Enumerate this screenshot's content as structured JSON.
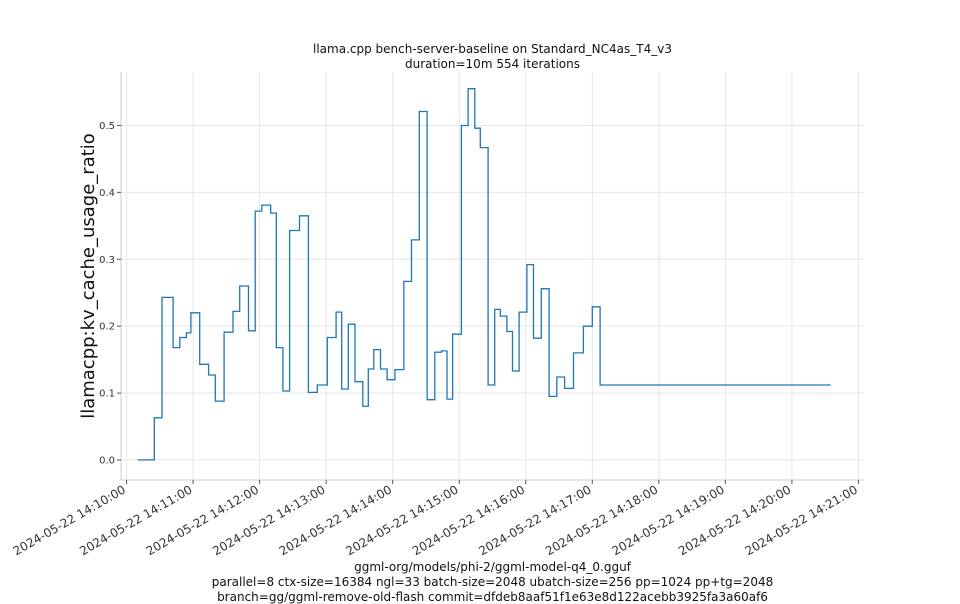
{
  "chart_data": {
    "type": "line",
    "title": "llama.cpp bench-server-baseline on Standard_NC4as_T4_v3",
    "subtitle": "duration=10m 554 iterations",
    "ylabel": "llamacpp:kv_cache_usage_ratio",
    "xlabel_lines": [
      "ggml-org/models/phi-2/ggml-model-q4_0.gguf",
      "parallel=8 ctx-size=16384 ngl=33 batch-size=2048 ubatch-size=256 pp=1024 pp+tg=2048",
      "branch=gg/ggml-remove-old-flash commit=dfdeb8aaf51f1e63e8d122acebb3925fa3a60af6"
    ],
    "xlim": [
      "2024-05-22 14:09:55",
      "2024-05-22 14:21:05"
    ],
    "ylim": [
      -0.03,
      0.58
    ],
    "grid": true,
    "x_ticks": [
      "2024-05-22 14:10:00",
      "2024-05-22 14:11:00",
      "2024-05-22 14:12:00",
      "2024-05-22 14:13:00",
      "2024-05-22 14:14:00",
      "2024-05-22 14:15:00",
      "2024-05-22 14:16:00",
      "2024-05-22 14:17:00",
      "2024-05-22 14:18:00",
      "2024-05-22 14:19:00",
      "2024-05-22 14:20:00",
      "2024-05-22 14:21:00"
    ],
    "y_ticks": [
      "0.0",
      "0.1",
      "0.2",
      "0.3",
      "0.4",
      "0.5"
    ],
    "line_color": "#1f77b4",
    "series": [
      {
        "x": [
          "14:10:10",
          "14:10:17",
          "14:10:25",
          "14:10:28",
          "14:10:32",
          "14:10:36",
          "14:10:42",
          "14:10:48",
          "14:10:54",
          "14:10:58",
          "14:11:06",
          "14:11:14",
          "14:11:20",
          "14:11:28",
          "14:11:36",
          "14:11:42",
          "14:11:50",
          "14:11:56",
          "14:12:02",
          "14:12:10",
          "14:12:15",
          "14:12:21",
          "14:12:27",
          "14:12:36",
          "14:12:44",
          "14:12:52",
          "14:13:01",
          "14:13:09",
          "14:13:14",
          "14:13:20",
          "14:13:26",
          "14:13:33",
          "14:13:38",
          "14:13:43",
          "14:13:49",
          "14:13:55",
          "14:14:02",
          "14:14:10",
          "14:14:17",
          "14:14:24",
          "14:14:31",
          "14:14:38",
          "14:14:44",
          "14:14:49",
          "14:14:54",
          "14:15:02",
          "14:15:08",
          "14:15:14",
          "14:15:19",
          "14:15:26",
          "14:15:32",
          "14:15:37",
          "14:15:43",
          "14:15:48",
          "14:15:54",
          "14:16:01",
          "14:16:07",
          "14:16:14",
          "14:16:21",
          "14:16:28",
          "14:16:35",
          "14:16:43",
          "14:16:52",
          "14:17:00",
          "14:17:07",
          "14:17:15",
          "14:17:22",
          "14:17:28",
          "14:17:36",
          "14:17:41",
          "14:17:46",
          "14:17:52",
          "14:17:58",
          "14:18:04",
          "14:18:09",
          "14:18:15",
          "14:18:22",
          "14:18:28",
          "14:18:35",
          "14:18:42",
          "14:18:48",
          "14:18:54",
          "14:19:01",
          "14:19:08",
          "14:19:14",
          "14:19:19",
          "14:19:25",
          "14:19:32",
          "14:19:38",
          "14:19:44",
          "14:19:50",
          "14:19:56",
          "14:20:02",
          "14:20:09",
          "14:20:16",
          "14:20:23",
          "14:20:31",
          "14:20:35"
        ],
        "y": [
          0.0,
          0.0,
          0.063,
          0.063,
          0.243,
          0.243,
          0.168,
          0.183,
          0.19,
          0.22,
          0.143,
          0.127,
          0.088,
          0.191,
          0.222,
          0.26,
          0.193,
          0.372,
          0.381,
          0.369,
          0.168,
          0.103,
          0.343,
          0.365,
          0.101,
          0.112,
          0.183,
          0.221,
          0.106,
          0.203,
          0.117,
          0.08,
          0.136,
          0.165,
          0.136,
          0.12,
          0.135,
          0.267,
          0.329,
          0.521,
          0.09,
          0.161,
          0.163,
          0.091,
          0.188,
          0.5,
          0.555,
          0.496,
          0.467,
          0.112,
          0.225,
          0.215,
          0.192,
          0.133,
          0.221,
          0.292,
          0.182,
          0.256,
          0.095,
          0.124,
          0.107,
          0.16,
          0.2,
          0.229,
          0.112,
          0.112,
          0.112,
          0.112,
          0.112,
          0.112,
          0.112,
          0.112,
          0.112,
          0.112,
          0.112,
          0.112,
          0.112,
          0.112,
          0.112,
          0.112,
          0.112,
          0.112,
          0.112,
          0.112,
          0.112,
          0.112,
          0.112,
          0.112,
          0.112,
          0.112,
          0.112,
          0.112,
          0.112,
          0.112,
          0.112,
          0.112,
          0.112,
          0.112
        ]
      }
    ]
  }
}
